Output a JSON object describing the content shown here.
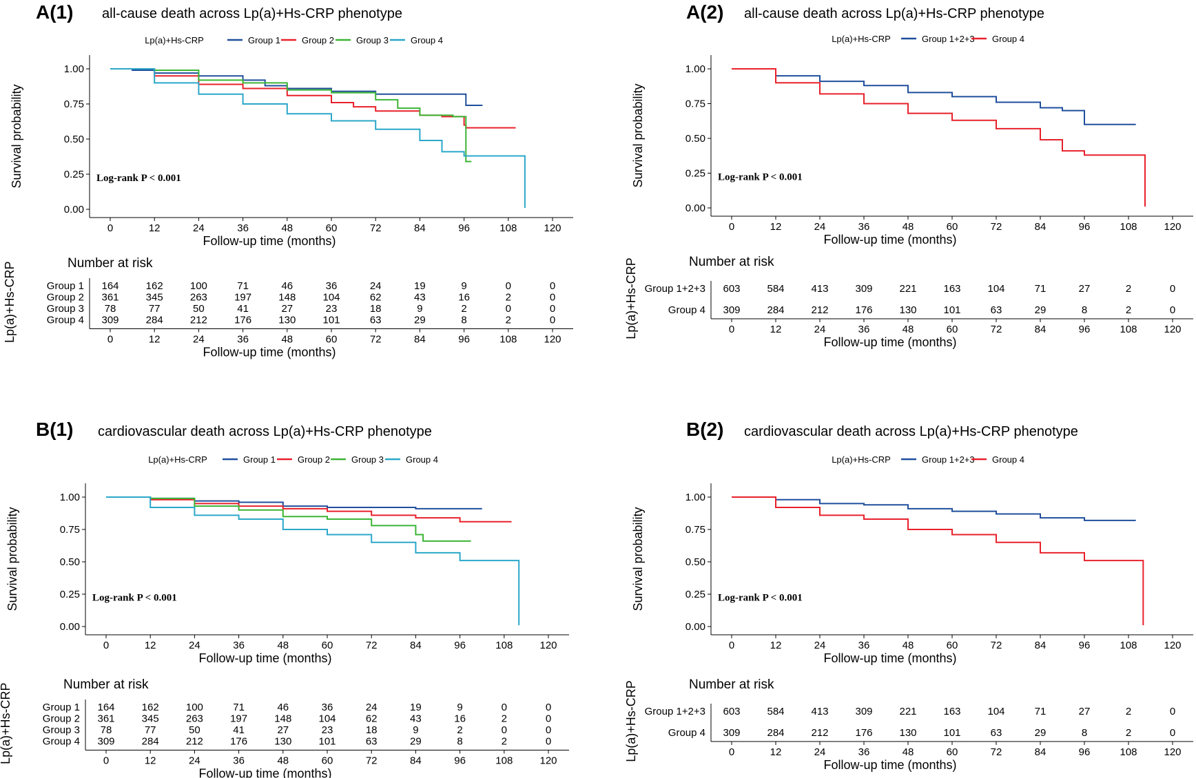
{
  "colors": {
    "group1": "#1f4e9c",
    "group2": "#e8202a",
    "group3": "#3bb534",
    "group4": "#2aa7c9",
    "group123": "#1f4e9c",
    "group4_red": "#e8202a"
  },
  "chart_data": [
    {
      "id": "A1",
      "type": "line",
      "panel_label": "A(1)",
      "title": "all-cause death across Lp(a)+Hs-CRP phenotype",
      "legend_title": "Lp(a)+Hs-CRP",
      "xlabel": "Follow-up time (months)",
      "ylabel": "Survival probability",
      "xlim": [
        0,
        120
      ],
      "ylim": [
        0,
        1
      ],
      "x_ticks": [
        "0",
        "12",
        "24",
        "36",
        "48",
        "60",
        "72",
        "84",
        "96",
        "108",
        "120"
      ],
      "y_ticks": [
        "0.00",
        "0.25",
        "0.50",
        "0.75",
        "1.00"
      ],
      "annotation": "Log-rank P < 0.001",
      "risk_title": "Number at risk",
      "risk_ylabel": "Lp(a)+Hs-CRP",
      "risk_times": [
        0,
        12,
        24,
        36,
        48,
        60,
        72,
        84,
        96,
        108,
        120
      ],
      "series": [
        {
          "name": "Group 1",
          "color_key": "group1",
          "points": [
            [
              0,
              1.0
            ],
            [
              6,
              0.99
            ],
            [
              12,
              0.97
            ],
            [
              24,
              0.95
            ],
            [
              36,
              0.92
            ],
            [
              42,
              0.88
            ],
            [
              48,
              0.86
            ],
            [
              60,
              0.84
            ],
            [
              72,
              0.82
            ],
            [
              84,
              0.82
            ],
            [
              96,
              0.82
            ],
            [
              96.5,
              0.74
            ],
            [
              101,
              0.74
            ]
          ],
          "risk": [
            "164",
            "162",
            "100",
            "71",
            "46",
            "36",
            "24",
            "19",
            "9",
            "0",
            "0"
          ]
        },
        {
          "name": "Group 2",
          "color_key": "group2",
          "points": [
            [
              0,
              1.0
            ],
            [
              12,
              0.95
            ],
            [
              24,
              0.89
            ],
            [
              36,
              0.86
            ],
            [
              48,
              0.81
            ],
            [
              60,
              0.76
            ],
            [
              66,
              0.73
            ],
            [
              72,
              0.7
            ],
            [
              84,
              0.67
            ],
            [
              90,
              0.66
            ],
            [
              96,
              0.6
            ],
            [
              96.5,
              0.58
            ],
            [
              110,
              0.58
            ]
          ],
          "risk": [
            "361",
            "345",
            "263",
            "197",
            "148",
            "104",
            "62",
            "43",
            "16",
            "2",
            "0"
          ]
        },
        {
          "name": "Group 3",
          "color_key": "group3",
          "points": [
            [
              0,
              1.0
            ],
            [
              12,
              0.99
            ],
            [
              24,
              0.92
            ],
            [
              36,
              0.9
            ],
            [
              48,
              0.85
            ],
            [
              60,
              0.83
            ],
            [
              72,
              0.78
            ],
            [
              78,
              0.72
            ],
            [
              84,
              0.67
            ],
            [
              93,
              0.66
            ],
            [
              96.5,
              0.66
            ],
            [
              96.5,
              0.34
            ],
            [
              98,
              0.34
            ]
          ],
          "risk": [
            "78",
            "77",
            "50",
            "41",
            "27",
            "23",
            "18",
            "9",
            "2",
            "0",
            "0"
          ]
        },
        {
          "name": "Group 4",
          "color_key": "group4",
          "points": [
            [
              0,
              1.0
            ],
            [
              12,
              0.9
            ],
            [
              24,
              0.82
            ],
            [
              36,
              0.75
            ],
            [
              48,
              0.68
            ],
            [
              60,
              0.63
            ],
            [
              72,
              0.57
            ],
            [
              84,
              0.49
            ],
            [
              90,
              0.41
            ],
            [
              96,
              0.38
            ],
            [
              112.5,
              0.38
            ],
            [
              112.5,
              0.01
            ]
          ],
          "risk": [
            "309",
            "284",
            "212",
            "176",
            "130",
            "101",
            "63",
            "29",
            "8",
            "2",
            "0"
          ]
        }
      ]
    },
    {
      "id": "A2",
      "type": "line",
      "panel_label": "A(2)",
      "title": "all-cause death across Lp(a)+Hs-CRP phenotype",
      "legend_title": "Lp(a)+Hs-CRP",
      "xlabel": "Follow-up time (months)",
      "ylabel": "Survival probability",
      "xlim": [
        0,
        120
      ],
      "ylim": [
        0,
        1
      ],
      "x_ticks": [
        "0",
        "12",
        "24",
        "36",
        "48",
        "60",
        "72",
        "84",
        "96",
        "108",
        "120"
      ],
      "y_ticks": [
        "0.00",
        "0.25",
        "0.50",
        "0.75",
        "1.00"
      ],
      "annotation": "Log-rank P < 0.001",
      "risk_title": "Number at risk",
      "risk_ylabel": "Lp(a)+Hs-CRP",
      "risk_times": [
        0,
        12,
        24,
        36,
        48,
        60,
        72,
        84,
        96,
        108,
        120
      ],
      "series": [
        {
          "name": "Group 1+2+3",
          "color_key": "group123",
          "points": [
            [
              0,
              1.0
            ],
            [
              12,
              0.95
            ],
            [
              24,
              0.91
            ],
            [
              36,
              0.88
            ],
            [
              48,
              0.83
            ],
            [
              60,
              0.8
            ],
            [
              72,
              0.76
            ],
            [
              84,
              0.72
            ],
            [
              90,
              0.7
            ],
            [
              96,
              0.6
            ],
            [
              110,
              0.6
            ]
          ],
          "risk": [
            "603",
            "584",
            "413",
            "309",
            "221",
            "163",
            "104",
            "71",
            "27",
            "2",
            "0"
          ]
        },
        {
          "name": "Group 4",
          "color_key": "group4_red",
          "points": [
            [
              0,
              1.0
            ],
            [
              12,
              0.9
            ],
            [
              24,
              0.82
            ],
            [
              36,
              0.75
            ],
            [
              48,
              0.68
            ],
            [
              60,
              0.63
            ],
            [
              72,
              0.57
            ],
            [
              84,
              0.49
            ],
            [
              90,
              0.41
            ],
            [
              96,
              0.38
            ],
            [
              112.5,
              0.38
            ],
            [
              112.5,
              0.01
            ]
          ],
          "risk": [
            "309",
            "284",
            "212",
            "176",
            "130",
            "101",
            "63",
            "29",
            "8",
            "2",
            "0"
          ]
        }
      ]
    },
    {
      "id": "B1",
      "type": "line",
      "panel_label": "B(1)",
      "title": "cardiovascular death across Lp(a)+Hs-CRP phenotype",
      "legend_title": "Lp(a)+Hs-CRP",
      "xlabel": "Follow-up time (months)",
      "ylabel": "Survival probability",
      "xlim": [
        0,
        120
      ],
      "ylim": [
        0,
        1
      ],
      "x_ticks": [
        "0",
        "12",
        "24",
        "36",
        "48",
        "60",
        "72",
        "84",
        "96",
        "108",
        "120"
      ],
      "y_ticks": [
        "0.00",
        "0.25",
        "0.50",
        "0.75",
        "1.00"
      ],
      "annotation": "Log-rank P < 0.001",
      "risk_title": "Number at risk",
      "risk_ylabel": "Lp(a)+Hs-CRP",
      "risk_times": [
        0,
        12,
        24,
        36,
        48,
        60,
        72,
        84,
        96,
        108,
        120
      ],
      "series": [
        {
          "name": "Group 1",
          "color_key": "group1",
          "points": [
            [
              0,
              1.0
            ],
            [
              12,
              0.99
            ],
            [
              24,
              0.97
            ],
            [
              36,
              0.96
            ],
            [
              48,
              0.93
            ],
            [
              60,
              0.92
            ],
            [
              72,
              0.92
            ],
            [
              84,
              0.91
            ],
            [
              96,
              0.91
            ],
            [
              102,
              0.91
            ]
          ],
          "risk": [
            "164",
            "162",
            "100",
            "71",
            "46",
            "36",
            "24",
            "19",
            "9",
            "0",
            "0"
          ]
        },
        {
          "name": "Group 2",
          "color_key": "group2",
          "points": [
            [
              0,
              1.0
            ],
            [
              12,
              0.98
            ],
            [
              24,
              0.95
            ],
            [
              36,
              0.93
            ],
            [
              48,
              0.91
            ],
            [
              60,
              0.89
            ],
            [
              72,
              0.86
            ],
            [
              84,
              0.84
            ],
            [
              96,
              0.81
            ],
            [
              110,
              0.81
            ]
          ],
          "risk": [
            "361",
            "345",
            "263",
            "197",
            "148",
            "104",
            "62",
            "43",
            "16",
            "2",
            "0"
          ]
        },
        {
          "name": "Group 3",
          "color_key": "group3",
          "points": [
            [
              0,
              1.0
            ],
            [
              12,
              0.99
            ],
            [
              24,
              0.93
            ],
            [
              36,
              0.9
            ],
            [
              48,
              0.85
            ],
            [
              60,
              0.83
            ],
            [
              72,
              0.78
            ],
            [
              84,
              0.71
            ],
            [
              86,
              0.66
            ],
            [
              99,
              0.66
            ]
          ],
          "risk": [
            "78",
            "77",
            "50",
            "41",
            "27",
            "23",
            "18",
            "9",
            "2",
            "0",
            "0"
          ]
        },
        {
          "name": "Group 4",
          "color_key": "group4",
          "points": [
            [
              0,
              1.0
            ],
            [
              12,
              0.92
            ],
            [
              24,
              0.86
            ],
            [
              36,
              0.83
            ],
            [
              48,
              0.75
            ],
            [
              60,
              0.71
            ],
            [
              72,
              0.65
            ],
            [
              84,
              0.57
            ],
            [
              96,
              0.51
            ],
            [
              112,
              0.51
            ],
            [
              112,
              0.01
            ]
          ],
          "risk": [
            "309",
            "284",
            "212",
            "176",
            "130",
            "101",
            "63",
            "29",
            "8",
            "2",
            "0"
          ]
        }
      ]
    },
    {
      "id": "B2",
      "type": "line",
      "panel_label": "B(2)",
      "title": "cardiovascular death across Lp(a)+Hs-CRP phenotype",
      "legend_title": "Lp(a)+Hs-CRP",
      "xlabel": "Follow-up time (months)",
      "ylabel": "Survival probability",
      "xlim": [
        0,
        120
      ],
      "ylim": [
        0,
        1
      ],
      "x_ticks": [
        "0",
        "12",
        "24",
        "36",
        "48",
        "60",
        "72",
        "84",
        "96",
        "108",
        "120"
      ],
      "y_ticks": [
        "0.00",
        "0.25",
        "0.50",
        "0.75",
        "1.00"
      ],
      "annotation": "Log-rank P < 0.001",
      "risk_title": "Number at risk",
      "risk_ylabel": "Lp(a)+Hs-CRP",
      "risk_times": [
        0,
        12,
        24,
        36,
        48,
        60,
        72,
        84,
        96,
        108,
        120
      ],
      "series": [
        {
          "name": "Group 1+2+3",
          "color_key": "group123",
          "points": [
            [
              0,
              1.0
            ],
            [
              12,
              0.98
            ],
            [
              24,
              0.95
            ],
            [
              36,
              0.94
            ],
            [
              48,
              0.91
            ],
            [
              60,
              0.89
            ],
            [
              72,
              0.87
            ],
            [
              84,
              0.84
            ],
            [
              96,
              0.82
            ],
            [
              110,
              0.82
            ]
          ],
          "risk": [
            "603",
            "584",
            "413",
            "309",
            "221",
            "163",
            "104",
            "71",
            "27",
            "2",
            "0"
          ]
        },
        {
          "name": "Group 4",
          "color_key": "group4_red",
          "points": [
            [
              0,
              1.0
            ],
            [
              12,
              0.92
            ],
            [
              24,
              0.86
            ],
            [
              36,
              0.83
            ],
            [
              48,
              0.75
            ],
            [
              60,
              0.71
            ],
            [
              72,
              0.65
            ],
            [
              84,
              0.57
            ],
            [
              96,
              0.51
            ],
            [
              112,
              0.51
            ],
            [
              112,
              0.01
            ]
          ],
          "risk": [
            "309",
            "284",
            "212",
            "176",
            "130",
            "101",
            "63",
            "29",
            "8",
            "2",
            "0"
          ]
        }
      ]
    }
  ]
}
